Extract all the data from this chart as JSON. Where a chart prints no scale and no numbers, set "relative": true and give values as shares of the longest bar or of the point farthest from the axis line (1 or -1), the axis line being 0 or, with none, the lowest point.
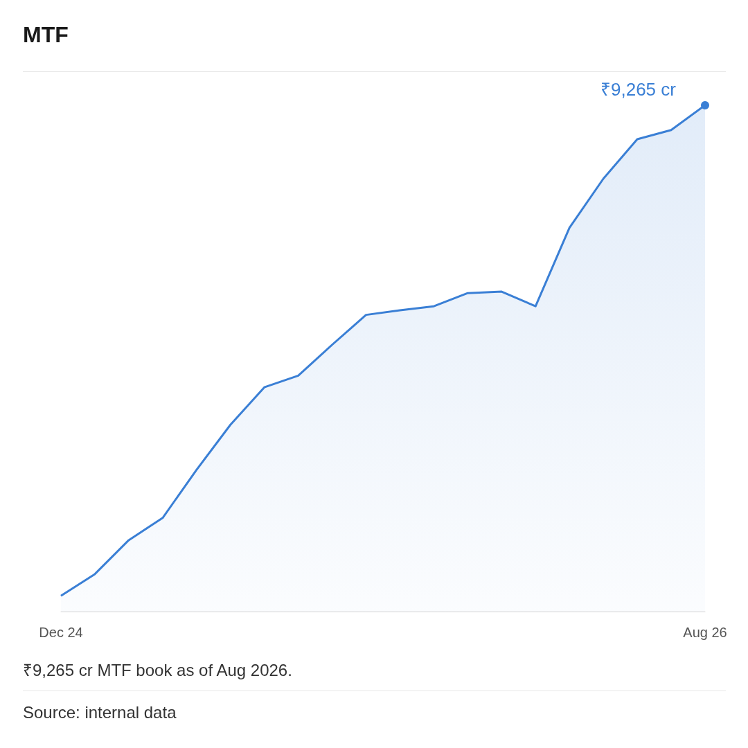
{
  "chart_data": {
    "type": "area",
    "title": "MTF",
    "relative": true,
    "tick_labels": "x",
    "categories": [
      "Dec 24",
      null,
      null,
      null,
      null,
      null,
      null,
      null,
      null,
      null,
      null,
      null,
      null,
      null,
      null,
      null,
      null,
      null,
      null,
      "Aug 26"
    ],
    "series": [
      {
        "color": "#3a7fd5",
        "values": [
          0.031,
          0.074,
          0.141,
          0.185,
          0.28,
          0.369,
          0.443,
          0.466,
          0.527,
          0.586,
          0.595,
          0.603,
          0.629,
          0.632,
          0.603,
          0.758,
          0.855,
          0.933,
          0.951,
          1
        ]
      }
    ],
    "annotations": [
      {
        "text": "₹9,265 cr",
        "x": "Aug 26",
        "y": 1
      },
      "₹9,265 cr MTF book as of Aug 2026.",
      "Source: internal data"
    ]
  }
}
